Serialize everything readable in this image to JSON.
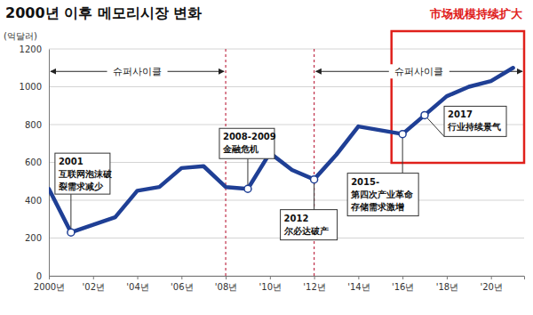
{
  "chart_data": {
    "type": "line",
    "title": "2000년 이후 메모리시장 변화",
    "y_label": "(억달러)",
    "x": [
      2000,
      2001,
      2002,
      2003,
      2004,
      2005,
      2006,
      2007,
      2008,
      2009,
      2010,
      2011,
      2012,
      2013,
      2014,
      2015,
      2016,
      2017,
      2018,
      2019,
      2020,
      2021
    ],
    "values": [
      460,
      230,
      270,
      310,
      450,
      470,
      570,
      580,
      470,
      460,
      650,
      560,
      510,
      640,
      790,
      770,
      750,
      850,
      950,
      1000,
      1030,
      1100
    ],
    "color": "#1f3f95",
    "xlim": [
      2000,
      2021.5
    ],
    "xticks": [
      {
        "value": 2000,
        "label": "2000년"
      },
      {
        "value": 2002,
        "label": "'02년"
      },
      {
        "value": 2004,
        "label": "'04년"
      },
      {
        "value": 2006,
        "label": "'06년"
      },
      {
        "value": 2008,
        "label": "'08년"
      },
      {
        "value": 2010,
        "label": "'10년"
      },
      {
        "value": 2012,
        "label": "'12년"
      },
      {
        "value": 2014,
        "label": "'14년"
      },
      {
        "value": 2016,
        "label": "'16년"
      },
      {
        "value": 2018,
        "label": "'18년"
      },
      {
        "value": 2020,
        "label": "'20년"
      }
    ],
    "ylim": [
      0,
      1200
    ],
    "yticks": [
      0,
      200,
      400,
      600,
      800,
      1000,
      1200
    ],
    "grid": true,
    "marker": "circle",
    "cycles": [
      {
        "text": "슈퍼사이클",
        "start": 2000,
        "end": 2008
      },
      {
        "text": "슈퍼사이클",
        "start": 2012,
        "end": 2021.5
      }
    ],
    "highlight": {
      "text": "市场规模持续扩大",
      "start": 2015.5,
      "end": 2021.5
    },
    "annotations": [
      {
        "x": 2001,
        "text": [
          "2001",
          "互联网泡沫破",
          "裂需求减少"
        ]
      },
      {
        "x": 2009,
        "text": [
          "2008-2009",
          "金融危机"
        ]
      },
      {
        "x": 2012,
        "text": [
          "2012",
          "尔必达破产"
        ]
      },
      {
        "x": 2016,
        "text": [
          "2015-",
          "第四次产业革命",
          "存储需求激增"
        ]
      },
      {
        "x": 2017,
        "text": [
          "2017",
          "行业持续景气"
        ]
      }
    ]
  }
}
